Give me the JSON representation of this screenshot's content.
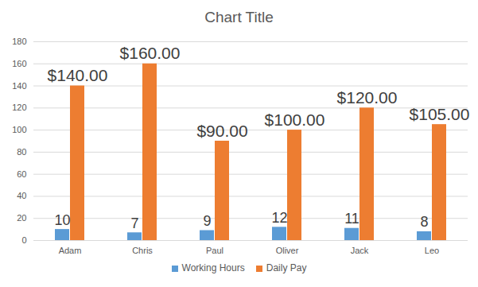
{
  "chart_data": {
    "type": "bar",
    "title": "Chart Title",
    "categories": [
      "Adam",
      "Chris",
      "Paul",
      "Oliver",
      "Jack",
      "Leo"
    ],
    "series": [
      {
        "name": "Working Hours",
        "color": "#5b9bd5",
        "values": [
          10,
          7,
          9,
          12,
          11,
          8
        ]
      },
      {
        "name": "Daily Pay",
        "color": "#ed7d31",
        "values": [
          140,
          160,
          90,
          100,
          120,
          105
        ],
        "value_labels": [
          "$140.00",
          "$160.00",
          "$90.00",
          "$100.00",
          "$120.00",
          "$105.00"
        ]
      }
    ],
    "ylim": [
      0,
      180
    ],
    "yticks": [
      0,
      20,
      40,
      60,
      80,
      100,
      120,
      140,
      160,
      180
    ],
    "grid": true,
    "legend": "bottom",
    "data_labels": true
  }
}
